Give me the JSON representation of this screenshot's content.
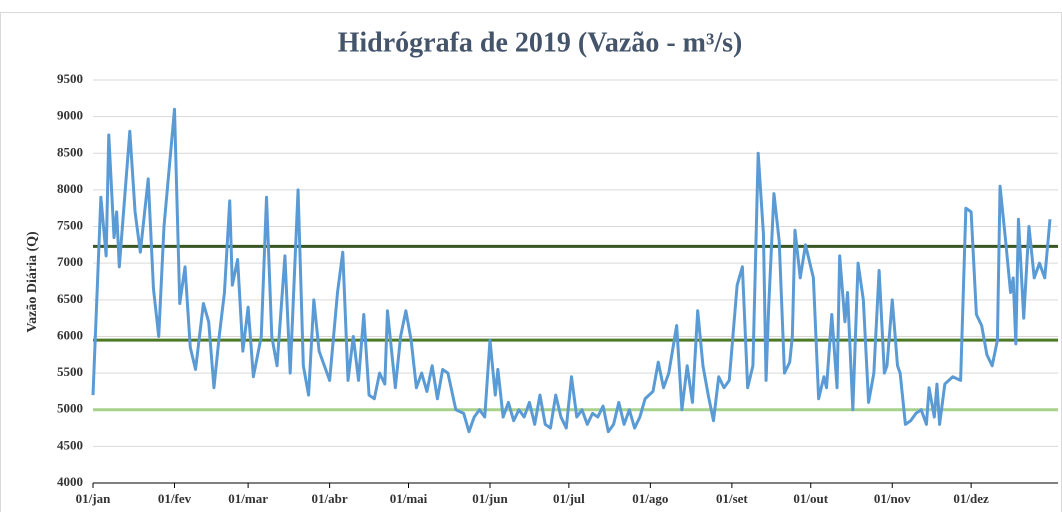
{
  "chart_data": {
    "type": "line",
    "title": "Hidrógrafa de 2019 (Vazão - m³/s)",
    "y_label": "Vazão Diária (Q)",
    "series": [
      {
        "color": "#5b9bd5",
        "x": [
          0,
          3,
          5,
          6,
          8,
          9,
          10,
          14,
          16,
          18,
          21,
          23,
          25,
          27,
          31,
          33,
          35,
          37,
          39,
          42,
          44,
          46,
          48,
          50,
          52,
          53,
          55,
          57,
          59,
          61,
          64,
          66,
          68,
          70,
          73,
          75,
          78,
          80,
          82,
          84,
          86,
          88,
          90,
          93,
          95,
          97,
          99,
          101,
          103,
          105,
          107,
          109,
          111,
          112,
          115,
          117,
          119,
          121,
          123,
          125,
          127,
          129,
          131,
          133,
          135,
          138,
          141,
          143,
          145,
          147,
          149,
          151,
          153,
          154,
          156,
          158,
          160,
          162,
          164,
          166,
          168,
          170,
          172,
          174,
          176,
          178,
          180,
          182,
          184,
          186,
          188,
          190,
          192,
          194,
          196,
          198,
          200,
          202,
          204,
          206,
          208,
          210,
          213,
          215,
          217,
          219,
          222,
          224,
          226,
          228,
          230,
          232,
          234,
          236,
          238,
          240,
          242,
          245,
          247,
          249,
          251,
          253,
          255,
          256,
          257,
          259,
          261,
          263,
          265,
          266,
          267,
          269,
          271,
          274,
          276,
          278,
          279,
          281,
          283,
          284,
          286,
          287,
          289,
          291,
          293,
          295,
          297,
          299,
          301,
          302,
          304,
          306,
          307,
          309,
          311,
          313,
          315,
          317,
          318,
          320,
          321,
          322,
          324,
          327,
          330,
          332,
          334,
          336,
          338,
          340,
          342,
          344,
          345,
          347,
          349,
          350,
          351,
          352,
          354,
          356,
          358,
          360,
          362,
          364
        ],
        "values": [
          5200,
          7900,
          7100,
          8750,
          7350,
          7700,
          6950,
          8800,
          7700,
          7150,
          8150,
          6650,
          6000,
          7500,
          9100,
          6450,
          6950,
          5850,
          5550,
          6450,
          6200,
          5300,
          6000,
          6600,
          7850,
          6700,
          7050,
          5800,
          6400,
          5450,
          6000,
          7900,
          6000,
          5600,
          7100,
          5500,
          8000,
          5600,
          5200,
          6500,
          5800,
          5600,
          5400,
          6600,
          7150,
          5400,
          6000,
          5400,
          6300,
          5200,
          5150,
          5500,
          5350,
          6350,
          5300,
          6000,
          6350,
          5950,
          5300,
          5500,
          5250,
          5600,
          5150,
          5550,
          5500,
          5000,
          4950,
          4700,
          4900,
          5000,
          4900,
          5950,
          5200,
          5550,
          4900,
          5100,
          4850,
          5000,
          4900,
          5100,
          4800,
          5200,
          4800,
          4750,
          5200,
          4900,
          4750,
          5450,
          4900,
          5000,
          4800,
          4950,
          4900,
          5050,
          4700,
          4800,
          5100,
          4800,
          5000,
          4750,
          4900,
          5150,
          5250,
          5650,
          5300,
          5500,
          6150,
          5000,
          5600,
          5100,
          6350,
          5600,
          5200,
          4850,
          5450,
          5300,
          5400,
          6700,
          6950,
          5300,
          5600,
          8500,
          7400,
          5400,
          6400,
          7950,
          7300,
          5500,
          5650,
          6000,
          7450,
          6800,
          7250,
          6800,
          5150,
          5450,
          5300,
          6300,
          5300,
          7100,
          6200,
          6600,
          5000,
          7000,
          6500,
          5100,
          5500,
          6900,
          5500,
          5600,
          6500,
          5600,
          5500,
          4800,
          4850,
          4950,
          5000,
          4800,
          5300,
          4900,
          5350,
          4800,
          5350,
          5450,
          5400,
          7750,
          7700,
          6300,
          6150,
          5750,
          5600,
          5950,
          8050,
          7350,
          6600,
          6800,
          5900,
          7600,
          6250,
          7500,
          6800,
          7000,
          6800,
          7600
        ]
      }
    ],
    "reference_lines": [
      {
        "value": 7230,
        "color": "#375623"
      },
      {
        "value": 5950,
        "color": "#4e7a27"
      },
      {
        "value": 5000,
        "color": "#a9d18e"
      }
    ],
    "xlim": [
      0,
      364
    ],
    "xticks": [
      {
        "value": 0,
        "label": "01/jan"
      },
      {
        "value": 31,
        "label": "01/fev"
      },
      {
        "value": 59,
        "label": "01/mar"
      },
      {
        "value": 90,
        "label": "01/abr"
      },
      {
        "value": 120,
        "label": "01/mai"
      },
      {
        "value": 151,
        "label": "01/jun"
      },
      {
        "value": 181,
        "label": "01/jul"
      },
      {
        "value": 212,
        "label": "01/ago"
      },
      {
        "value": 243,
        "label": "01/set"
      },
      {
        "value": 273,
        "label": "01/out"
      },
      {
        "value": 304,
        "label": "01/nov"
      },
      {
        "value": 334,
        "label": "01/dez"
      }
    ],
    "ylim": [
      4000,
      9500
    ],
    "yticks": [
      4000,
      4500,
      5000,
      5500,
      6000,
      6500,
      7000,
      7500,
      8000,
      8500,
      9000,
      9500
    ],
    "grid": true
  }
}
